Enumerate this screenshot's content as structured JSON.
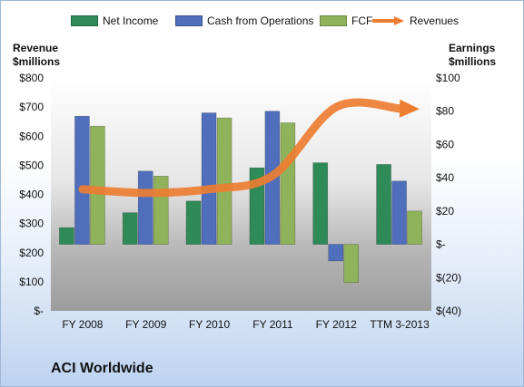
{
  "chart_data": {
    "type": "bar",
    "title": "",
    "company": "ACI Worldwide",
    "categories": [
      "FY 2008",
      "FY 2009",
      "FY 2010",
      "FY 2011",
      "FY 2012",
      "TTM 3-2013"
    ],
    "series": [
      {
        "name": "Net Income",
        "axis": "right",
        "type": "bar",
        "color": "#2e8b57",
        "values": [
          10,
          19,
          26,
          46,
          49,
          48
        ]
      },
      {
        "name": "Cash from Operations",
        "axis": "right",
        "type": "bar",
        "color": "#4f6fbd",
        "values": [
          77,
          44,
          79,
          80,
          -10,
          38
        ]
      },
      {
        "name": "FCF",
        "axis": "right",
        "type": "bar",
        "color": "#8fb35a",
        "values": [
          71,
          41,
          76,
          73,
          -23,
          20
        ]
      },
      {
        "name": "Revenues",
        "axis": "left",
        "type": "line",
        "color": "#ed7d31",
        "values": [
          418,
          405,
          418,
          465,
          700,
          695
        ]
      }
    ],
    "left_axis": {
      "title_line1": "Revenue",
      "title_line2": "$millions",
      "ylim": [
        0,
        800
      ],
      "ticks": [
        "$-",
        "$100",
        "$200",
        "$300",
        "$400",
        "$500",
        "$600",
        "$700",
        "$800"
      ]
    },
    "right_axis": {
      "title_line1": "Earnings",
      "title_line2": "$millions",
      "ylim": [
        -40,
        100
      ],
      "ticks": [
        "$(40)",
        "$(20)",
        "$-",
        "$20",
        "$40",
        "$60",
        "$80",
        "$100"
      ]
    },
    "legend_position": "top",
    "grid": false
  }
}
